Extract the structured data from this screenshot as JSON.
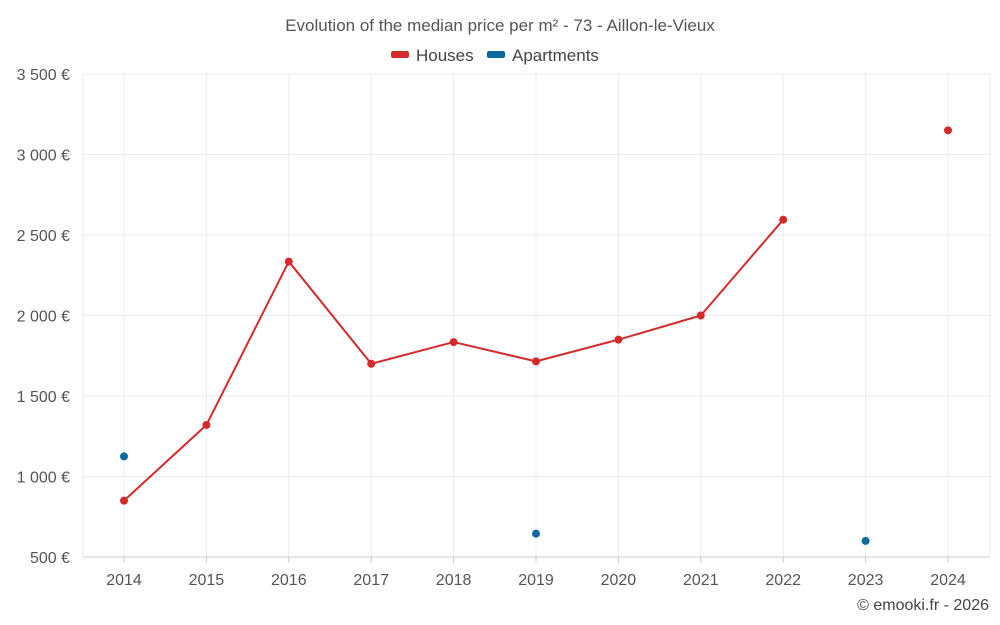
{
  "chart_data": {
    "type": "line",
    "title": "Evolution of the median price per m² - 73 - Aillon-le-Vieux",
    "x": [
      "2014",
      "2015",
      "2016",
      "2017",
      "2018",
      "2019",
      "2020",
      "2021",
      "2022",
      "2023",
      "2024"
    ],
    "y_ticks": [
      "500 €",
      "1 000 €",
      "1 500 €",
      "2 000 €",
      "2 500 €",
      "3 000 €",
      "3 500 €"
    ],
    "ylim": [
      500,
      3500
    ],
    "grid": true,
    "legend_position": "top-center",
    "series": [
      {
        "name": "Houses",
        "color": "#d32b2b",
        "values": [
          850,
          1320,
          2335,
          1700,
          1835,
          1715,
          1850,
          2000,
          2595,
          null,
          3150
        ]
      },
      {
        "name": "Apartments",
        "color": "#0a6aa1",
        "values": [
          1125,
          null,
          null,
          null,
          null,
          645,
          null,
          null,
          null,
          600,
          null
        ]
      }
    ]
  },
  "credit": "© emooki.fr - 2026"
}
